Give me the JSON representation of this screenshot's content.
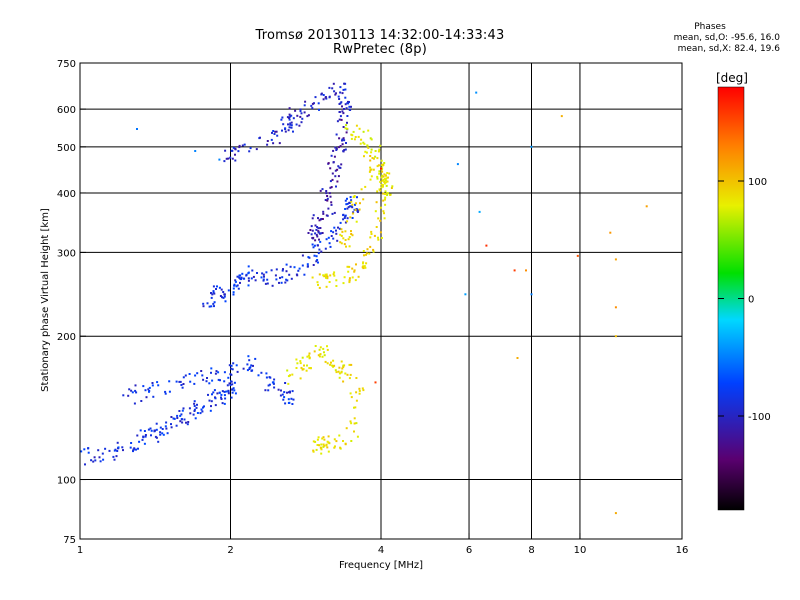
{
  "chart_data": {
    "type": "scatter",
    "title": "Tromsø 20130113 14:32:00-14:33:43",
    "subtitle": "RwPretec (8p)",
    "xlabel": "Frequency [MHz]",
    "ylabel": "Stationary phase Virtual Height [km]",
    "x_scale": "log",
    "y_scale": "log",
    "xlim": [
      1,
      16
    ],
    "ylim": [
      75,
      750
    ],
    "x_ticks": [
      "1",
      "2",
      "4",
      "6",
      "8",
      "10",
      "16"
    ],
    "y_ticks": [
      "75",
      "100",
      "200",
      "300",
      "400",
      "500",
      "600",
      "750"
    ],
    "grid": true,
    "stats_header": "Phases",
    "stats_lines": [
      "mean, sd,O: -95.6, 16.0",
      "mean, sd,X: 82.4, 19.6"
    ],
    "colorbar": {
      "label": "[deg]",
      "range": [
        -180,
        180
      ],
      "ticks": [
        "100",
        "0",
        "-100"
      ],
      "colormap": "rainbow"
    },
    "clusters": [
      {
        "mode": "O",
        "phase": -100,
        "points": [
          [
            1.0,
            112
          ],
          [
            1.1,
            112
          ],
          [
            1.2,
            115
          ],
          [
            1.3,
            120
          ],
          [
            1.4,
            125
          ],
          [
            1.5,
            130
          ],
          [
            1.6,
            135
          ],
          [
            1.7,
            140
          ],
          [
            1.8,
            145
          ],
          [
            1.9,
            150
          ],
          [
            2.0,
            155
          ]
        ]
      },
      {
        "mode": "O",
        "phase": -100,
        "points": [
          [
            1.25,
            150
          ],
          [
            1.4,
            155
          ],
          [
            1.6,
            160
          ],
          [
            1.8,
            165
          ],
          [
            2.0,
            170
          ],
          [
            2.2,
            175
          ],
          [
            2.4,
            160
          ],
          [
            2.6,
            150
          ]
        ]
      },
      {
        "mode": "O",
        "phase": -100,
        "points": [
          [
            1.8,
            240
          ],
          [
            1.9,
            245
          ],
          [
            2.0,
            250
          ],
          [
            2.1,
            260
          ],
          [
            2.2,
            270
          ],
          [
            2.4,
            265
          ],
          [
            2.6,
            270
          ],
          [
            2.8,
            280
          ],
          [
            3.0,
            300
          ],
          [
            3.2,
            330
          ],
          [
            3.4,
            360
          ],
          [
            3.5,
            380
          ]
        ]
      },
      {
        "mode": "O",
        "phase": -110,
        "points": [
          [
            2.0,
            480
          ],
          [
            2.1,
            495
          ],
          [
            2.5,
            530
          ],
          [
            2.6,
            560
          ],
          [
            2.7,
            580
          ],
          [
            2.9,
            600
          ],
          [
            3.1,
            640
          ],
          [
            3.3,
            660
          ],
          [
            3.4,
            600
          ]
        ]
      },
      {
        "mode": "O",
        "phase": -120,
        "points": [
          [
            3.1,
            400
          ],
          [
            3.2,
            450
          ],
          [
            3.3,
            500
          ],
          [
            3.35,
            550
          ],
          [
            3.2,
            380
          ],
          [
            3.0,
            350
          ],
          [
            2.95,
            330
          ]
        ]
      },
      {
        "mode": "X",
        "phase": 90,
        "points": [
          [
            3.0,
            260
          ],
          [
            3.2,
            262
          ],
          [
            3.5,
            270
          ],
          [
            3.7,
            290
          ],
          [
            3.9,
            330
          ],
          [
            4.0,
            380
          ],
          [
            4.1,
            420
          ],
          [
            3.8,
            460
          ],
          [
            3.6,
            380
          ],
          [
            3.4,
            320
          ]
        ]
      },
      {
        "mode": "X",
        "phase": 85,
        "points": [
          [
            2.6,
            165
          ],
          [
            2.8,
            175
          ],
          [
            3.0,
            185
          ],
          [
            3.2,
            180
          ],
          [
            3.4,
            170
          ],
          [
            3.6,
            150
          ],
          [
            3.5,
            125
          ],
          [
            3.2,
            120
          ],
          [
            3.0,
            118
          ]
        ]
      },
      {
        "mode": "X",
        "phase": 80,
        "points": [
          [
            3.5,
            540
          ],
          [
            3.7,
            520
          ],
          [
            3.9,
            480
          ],
          [
            4.0,
            440
          ],
          [
            4.1,
            410
          ]
        ]
      },
      {
        "mode": "scatter",
        "phase": -60,
        "points": [
          [
            1.3,
            545
          ],
          [
            1.7,
            490
          ],
          [
            1.9,
            470
          ],
          [
            5.7,
            460
          ],
          [
            6.2,
            650
          ],
          [
            6.3,
            365
          ],
          [
            8.0,
            500
          ],
          [
            8.0,
            245
          ],
          [
            5.9,
            245
          ]
        ]
      },
      {
        "mode": "scatter",
        "phase": 110,
        "points": [
          [
            9.2,
            580
          ],
          [
            11.5,
            330
          ],
          [
            11.8,
            290
          ],
          [
            11.8,
            230
          ],
          [
            11.8,
            200
          ],
          [
            11.8,
            85
          ],
          [
            13.6,
            375
          ],
          [
            7.5,
            180
          ],
          [
            7.8,
            275
          ]
        ]
      },
      {
        "mode": "scatter",
        "phase": 160,
        "points": [
          [
            6.5,
            310
          ],
          [
            9.9,
            295
          ],
          [
            7.4,
            275
          ],
          [
            3.9,
            160
          ],
          [
            4.0,
            450
          ]
        ]
      }
    ]
  }
}
